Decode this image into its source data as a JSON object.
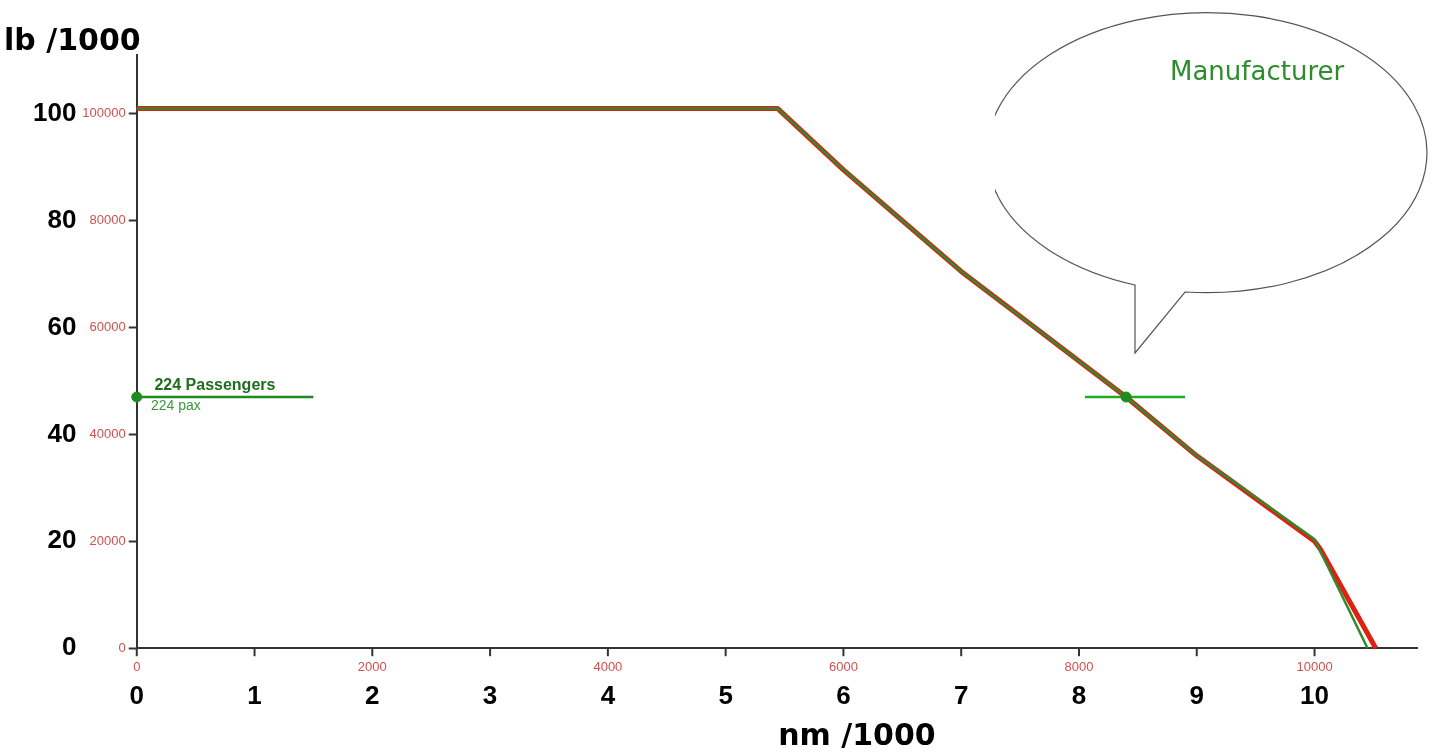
{
  "chart_data": {
    "type": "line",
    "xlabel": "nm /1000",
    "ylabel": "lb /1000",
    "xlim": [
      0,
      10.87
    ],
    "xticks": [
      0,
      1,
      2,
      3,
      4,
      5,
      6,
      7,
      8,
      9,
      10
    ],
    "ylim": [
      0,
      111
    ],
    "yticks": [
      0,
      20,
      40,
      60,
      80,
      100
    ],
    "x2lim": [
      0,
      10870
    ],
    "x2ticks": [
      0,
      2000,
      4000,
      6000,
      8000,
      10000
    ],
    "y2lim": [
      0,
      111000
    ],
    "y2ticks": [
      0,
      20000,
      40000,
      60000,
      80000,
      100000
    ],
    "grid": false,
    "legend": "top right",
    "marker": "none",
    "line_style": "solid",
    "series": [
      {
        "color": "#e02010",
        "x": [
          0,
          5.44,
          6,
          7,
          8.4,
          9,
          10,
          10.05,
          10.52
        ],
        "values": [
          101,
          101,
          89.5,
          70.5,
          47,
          36,
          20,
          18.5,
          0
        ]
      },
      {
        "name": "Manufacturer",
        "color": "#2e8b2e",
        "x": [
          0,
          5.44,
          6,
          7,
          8.4,
          9,
          10,
          10.45
        ],
        "values": [
          101,
          101,
          89.5,
          70.5,
          47,
          36,
          20.4,
          0
        ]
      },
      {
        "color": "#1e8c1e",
        "x": [
          0,
          1.5
        ],
        "values": [
          47,
          47
        ]
      },
      {
        "color": "#22aa22",
        "x": [
          8.05,
          8.9
        ],
        "values": [
          47,
          47
        ]
      },
      {
        "type": "scatter",
        "marker": "circle",
        "color": "#1e8c1e",
        "x": [
          0,
          8.4
        ],
        "values": [
          47,
          47
        ]
      }
    ],
    "annotations": [
      {
        "text": "224 Passengers",
        "x": 0.15,
        "y": 47
      },
      {
        "text": "224 pax",
        "x": 0.12,
        "y": 47
      }
    ]
  }
}
